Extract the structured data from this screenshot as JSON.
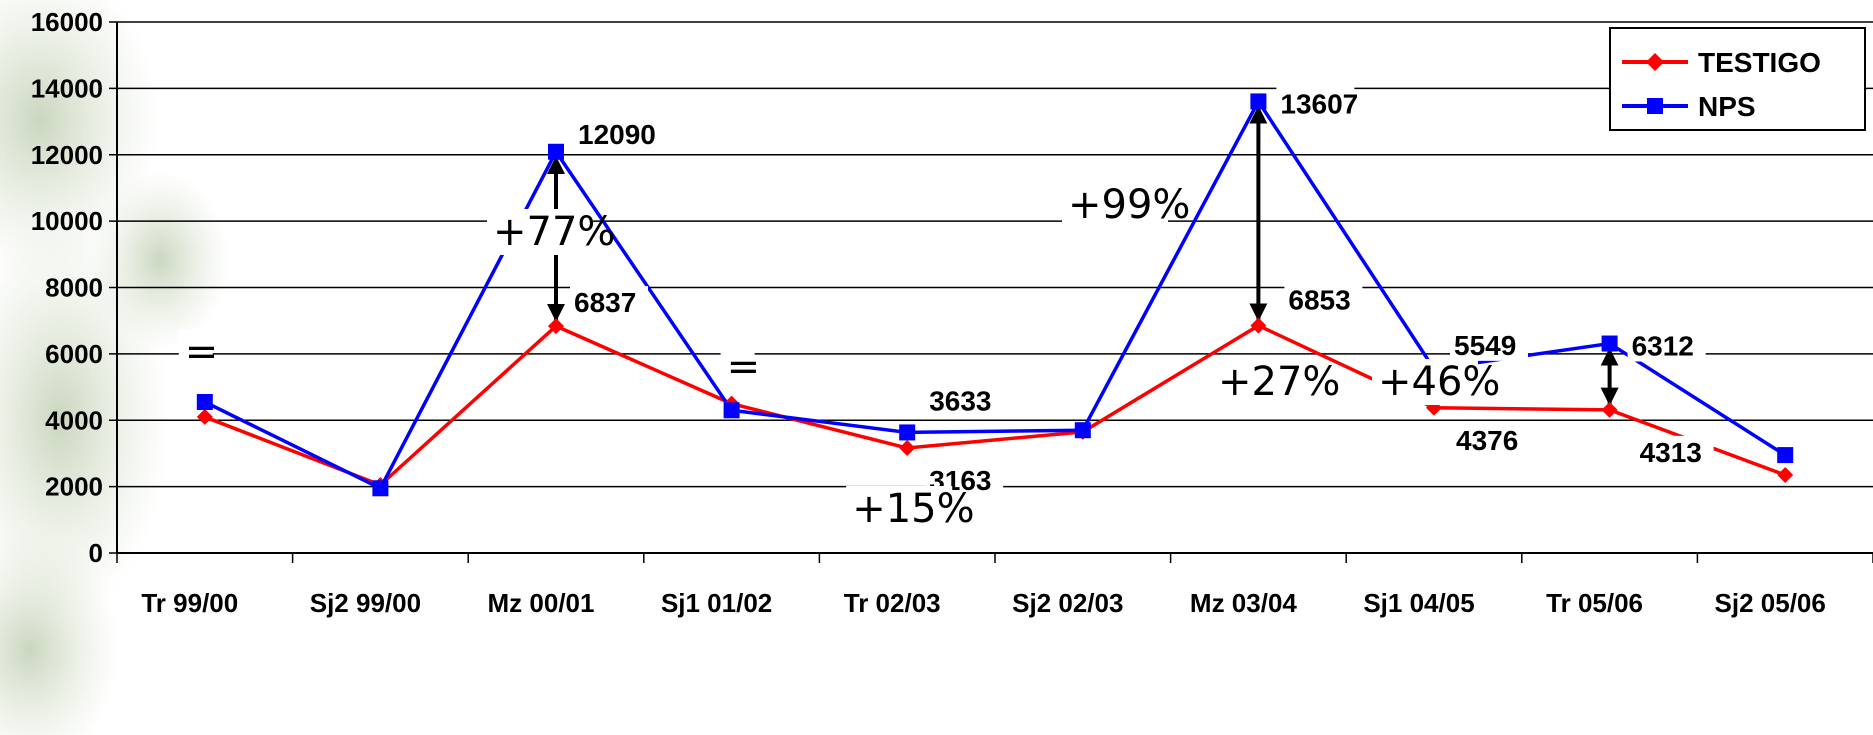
{
  "chart_data": {
    "type": "line",
    "categories": [
      "Tr 99/00",
      "Sj2 99/00",
      "Mz 00/01",
      "Sj1 01/02",
      "Tr 02/03",
      "Sj2 02/03",
      "Mz 03/04",
      "Sj1 04/05",
      "Tr 05/06",
      "Sj2 05/06"
    ],
    "ylim": [
      0,
      16000
    ],
    "yticks": [
      0,
      2000,
      4000,
      6000,
      8000,
      10000,
      12000,
      14000,
      16000
    ],
    "grid": true,
    "legend_position": "top-right",
    "series": [
      {
        "name": "TESTIGO",
        "color": "#ff0000",
        "marker": "diamond",
        "values": [
          4100,
          2050,
          6837,
          4500,
          3163,
          3650,
          6853,
          4376,
          4313,
          2350
        ]
      },
      {
        "name": "NPS",
        "color": "#0000ff",
        "marker": "square",
        "values": [
          4550,
          1950,
          12090,
          4300,
          3633,
          3700,
          13607,
          5549,
          6312,
          2950
        ]
      }
    ],
    "data_labels": [
      {
        "text": "12090",
        "category": 2,
        "value": 12090,
        "series": "NPS"
      },
      {
        "text": "6837",
        "category": 2,
        "value": 6837,
        "series": "TESTIGO"
      },
      {
        "text": "3633",
        "category": 4,
        "value": 3633,
        "series": "NPS"
      },
      {
        "text": "3163",
        "category": 4,
        "value": 3163,
        "series": "TESTIGO"
      },
      {
        "text": "13607",
        "category": 6,
        "value": 13607,
        "series": "NPS"
      },
      {
        "text": "6853",
        "category": 6,
        "value": 6853,
        "series": "TESTIGO"
      },
      {
        "text": "5549",
        "category": 7,
        "value": 5549,
        "series": "NPS"
      },
      {
        "text": "4376",
        "category": 7,
        "value": 4376,
        "series": "TESTIGO"
      },
      {
        "text": "6312",
        "category": 8,
        "value": 6312,
        "series": "NPS"
      },
      {
        "text": "4313",
        "category": 8,
        "value": 4313,
        "series": "TESTIGO"
      }
    ],
    "annotations": [
      {
        "text": "=",
        "category": 0
      },
      {
        "text": "+77%",
        "category": 2
      },
      {
        "text": "=",
        "category": 3
      },
      {
        "text": "+15%",
        "category": 4
      },
      {
        "text": "+99%",
        "category": 6
      },
      {
        "text": "+27%",
        "category": 7
      },
      {
        "text": "+46%",
        "category": 8
      }
    ]
  }
}
